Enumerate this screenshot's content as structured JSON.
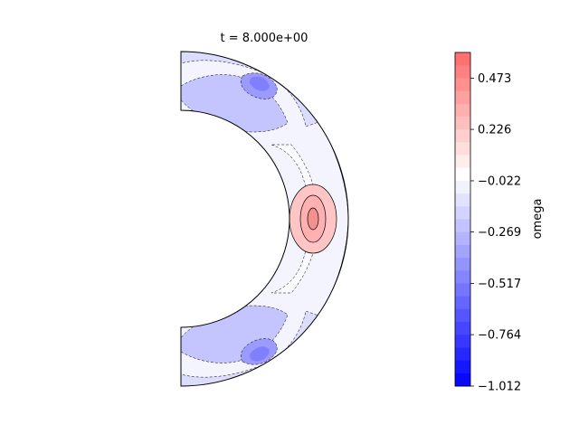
{
  "chart_data": {
    "type": "heatmap",
    "title": "t = 8.000e+00",
    "domain": "half-annulus (meridional slice of a spherical shell)",
    "colormap": "bwr",
    "colorbar": {
      "label": "omega",
      "range": [
        -1.012,
        0.597
      ],
      "ticks": [
        "0.473",
        "0.226",
        "−0.022",
        "−0.269",
        "−0.517",
        "−0.764",
        "−1.012"
      ],
      "tick_values": [
        0.473,
        0.226,
        -0.022,
        -0.269,
        -0.517,
        -0.764,
        -1.012
      ],
      "n_levels": 26
    },
    "field_features": [
      {
        "region": "equator, mid-shell",
        "value": 0.41,
        "description": "positive peak"
      },
      {
        "region": "outer shell near equator",
        "value": 0.12,
        "description": "weakly positive band"
      },
      {
        "region": "mid-latitude outer shell, north",
        "value": -0.6,
        "description": "negative minimum"
      },
      {
        "region": "mid-latitude outer shell, south",
        "value": -0.6,
        "description": "negative minimum"
      }
    ],
    "colors": {
      "min": "#0000ff",
      "zero": "#ffffff",
      "max": "#ff0000"
    }
  }
}
